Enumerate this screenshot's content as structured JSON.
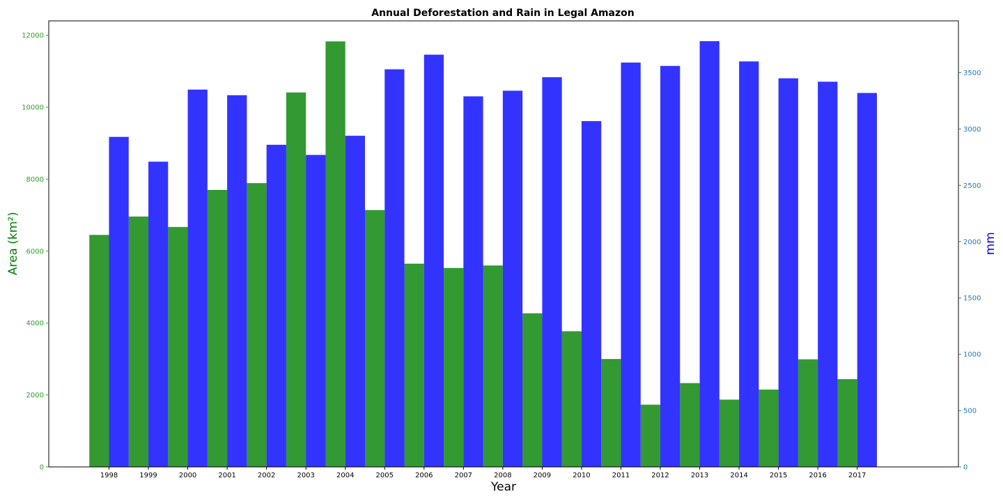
{
  "chart_data": {
    "type": "bar",
    "title": "Annual Deforestation and Rain in Legal Amazon",
    "xlabel": "Year",
    "ylabel": "Area (km²)",
    "ylabel_right": "mm",
    "categories": [
      "1998",
      "1999",
      "2000",
      "2001",
      "2002",
      "2003",
      "2004",
      "2005",
      "2006",
      "2007",
      "2008",
      "2009",
      "2010",
      "2011",
      "2012",
      "2013",
      "2014",
      "2015",
      "2016",
      "2017"
    ],
    "ylim": [
      0,
      12400
    ],
    "ylim_right": [
      0,
      3960
    ],
    "yticks": [
      0,
      2000,
      4000,
      6000,
      8000,
      10000,
      12000
    ],
    "yticks_right": [
      0,
      500,
      1000,
      1500,
      2000,
      2500,
      3000,
      3500
    ],
    "grid": false,
    "colors": {
      "deforestation": "#008000",
      "rain": "#0000ff",
      "left_axis": "#2ca02c",
      "right_axis": "#1f77b4"
    },
    "series": [
      {
        "axis": "left",
        "values": [
          6450,
          6960,
          6670,
          7700,
          7890,
          10410,
          11830,
          7140,
          5650,
          5530,
          5600,
          4270,
          3770,
          3000,
          1730,
          2330,
          1870,
          2150,
          2990,
          2440
        ]
      },
      {
        "axis": "right",
        "values": [
          2930,
          2710,
          3350,
          3300,
          2860,
          2770,
          2940,
          3530,
          3660,
          3290,
          3340,
          3460,
          3070,
          3590,
          3560,
          3780,
          3600,
          3450,
          3420,
          3320
        ]
      }
    ]
  }
}
